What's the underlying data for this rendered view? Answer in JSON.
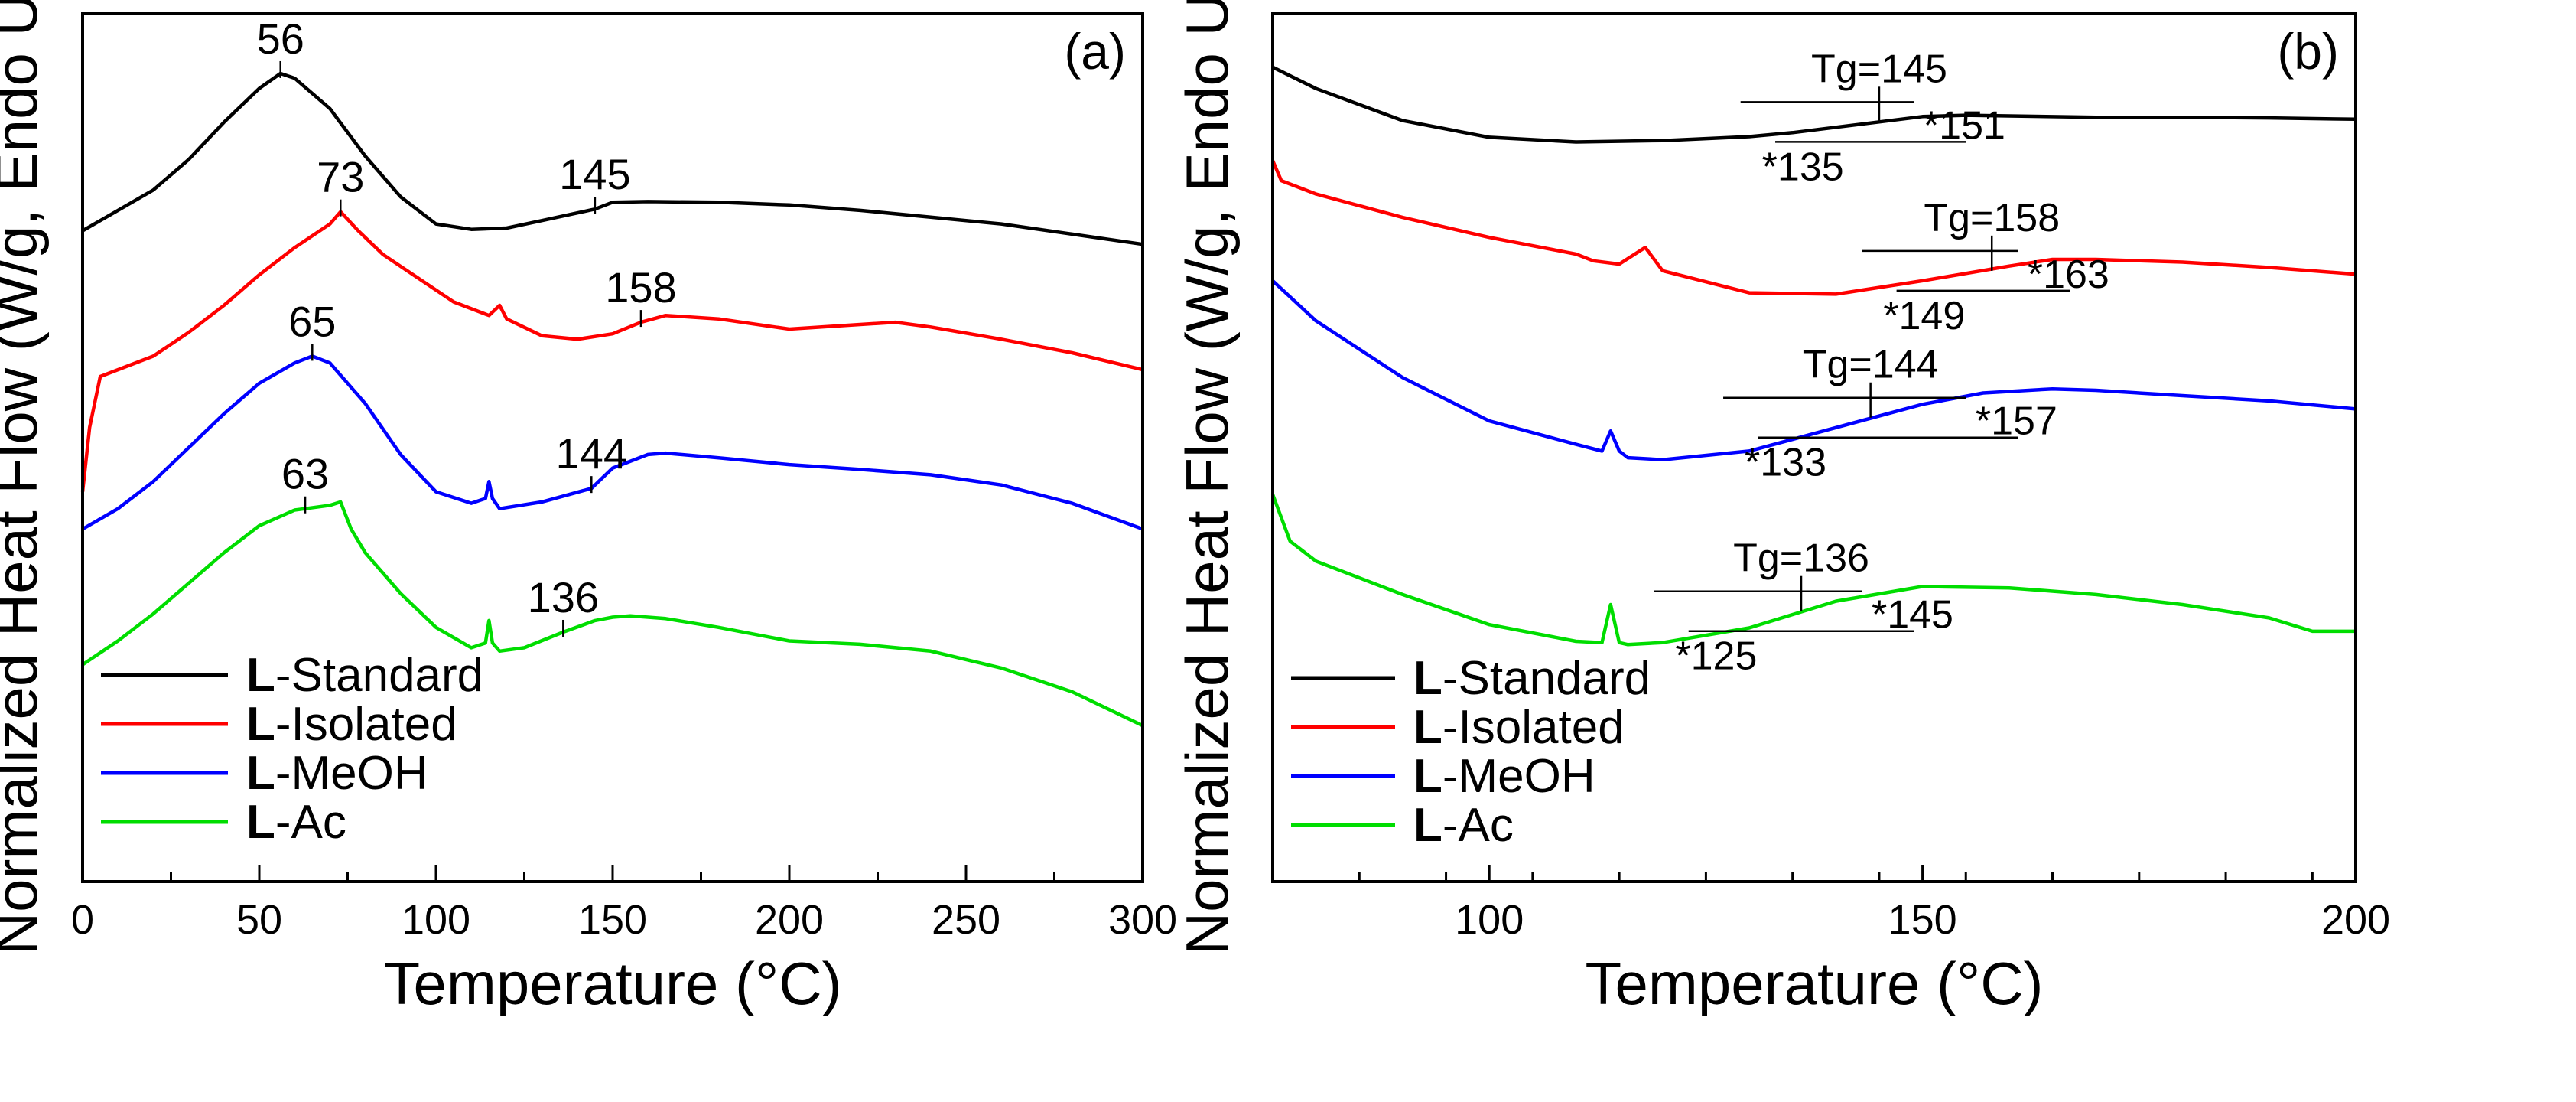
{
  "chart_data": [
    {
      "type": "line",
      "panel_label": "(a)",
      "xlabel": "Temperature (°C)",
      "ylabel": "Normalized Heat Flow (W/g, Endo Up)",
      "xlim": [
        0,
        300
      ],
      "xticks": [
        0,
        50,
        100,
        150,
        200,
        250,
        300
      ],
      "yticks_shown": false,
      "legend_position": "bottom-left",
      "series": [
        {
          "name": "Standard",
          "prefix": "L",
          "color": "#000000",
          "x": [
            0,
            10,
            20,
            30,
            40,
            50,
            56,
            60,
            70,
            80,
            90,
            100,
            110,
            120,
            130,
            145,
            150,
            160,
            180,
            200,
            220,
            240,
            260,
            280,
            300
          ],
          "y": [
            6.4,
            6.7,
            7.0,
            7.45,
            8.0,
            8.5,
            8.72,
            8.65,
            8.2,
            7.5,
            6.9,
            6.5,
            6.42,
            6.44,
            6.55,
            6.72,
            6.82,
            6.83,
            6.82,
            6.78,
            6.7,
            6.6,
            6.5,
            6.35,
            6.2
          ]
        },
        {
          "name": "Isolated",
          "prefix": "L",
          "color": "#ff0000",
          "x": [
            0,
            2,
            5,
            10,
            20,
            30,
            40,
            50,
            60,
            70,
            73,
            78,
            85,
            95,
            105,
            115,
            118,
            120,
            130,
            140,
            150,
            158,
            165,
            180,
            200,
            215,
            230,
            240,
            260,
            280,
            300
          ],
          "y": [
            2.55,
            3.5,
            4.25,
            4.35,
            4.55,
            4.9,
            5.3,
            5.75,
            6.15,
            6.5,
            6.68,
            6.4,
            6.05,
            5.7,
            5.35,
            5.15,
            5.3,
            5.1,
            4.85,
            4.8,
            4.88,
            5.05,
            5.15,
            5.1,
            4.95,
            5.0,
            5.05,
            4.98,
            4.8,
            4.6,
            4.35
          ]
        },
        {
          "name": "MeOH",
          "prefix": "L",
          "color": "#0000ff",
          "x": [
            0,
            10,
            20,
            30,
            40,
            50,
            60,
            65,
            70,
            80,
            90,
            100,
            110,
            114,
            115,
            116,
            118,
            130,
            144,
            150,
            160,
            165,
            180,
            200,
            220,
            240,
            260,
            280,
            300
          ],
          "y": [
            2.0,
            2.3,
            2.7,
            3.2,
            3.7,
            4.15,
            4.45,
            4.55,
            4.45,
            3.85,
            3.1,
            2.55,
            2.38,
            2.45,
            2.7,
            2.45,
            2.3,
            2.4,
            2.6,
            2.9,
            3.1,
            3.12,
            3.05,
            2.95,
            2.88,
            2.8,
            2.65,
            2.38,
            2.0
          ]
        },
        {
          "name": "Ac",
          "prefix": "L",
          "color": "#00dd00",
          "x": [
            0,
            10,
            20,
            30,
            40,
            50,
            60,
            63,
            70,
            73,
            76,
            80,
            90,
            100,
            110,
            114,
            115,
            116,
            118,
            125,
            136,
            145,
            150,
            155,
            165,
            180,
            200,
            220,
            240,
            260,
            280,
            300
          ],
          "y": [
            0.0,
            0.35,
            0.75,
            1.2,
            1.65,
            2.05,
            2.28,
            2.3,
            2.35,
            2.4,
            2.0,
            1.65,
            1.05,
            0.55,
            0.25,
            0.32,
            0.65,
            0.32,
            0.2,
            0.25,
            0.48,
            0.65,
            0.7,
            0.72,
            0.68,
            0.55,
            0.35,
            0.3,
            0.2,
            -0.05,
            -0.4,
            -0.9
          ]
        }
      ],
      "annotations": [
        "56",
        "145",
        "73",
        "158",
        "65",
        "144",
        "63",
        "136"
      ]
    },
    {
      "type": "line",
      "panel_label": "(b)",
      "xlabel": "Temperature (°C)",
      "ylabel": "Normalized Heat Flow (W/g, Endo Up)",
      "xlim": [
        75,
        200
      ],
      "xticks": [
        100,
        150,
        200
      ],
      "yticks_shown": false,
      "legend_position": "bottom-left",
      "series": [
        {
          "name": "Standard",
          "prefix": "L",
          "color": "#000000",
          "x": [
            75,
            80,
            90,
            100,
            110,
            120,
            130,
            135,
            140,
            145,
            150,
            155,
            160,
            170,
            180,
            190,
            200
          ],
          "y": [
            7.6,
            7.28,
            6.8,
            6.55,
            6.48,
            6.5,
            6.56,
            6.62,
            6.7,
            6.78,
            6.86,
            6.88,
            6.87,
            6.85,
            6.85,
            6.84,
            6.82
          ]
        },
        {
          "name": "Isolated",
          "prefix": "L",
          "color": "#ff0000",
          "x": [
            75,
            76,
            80,
            90,
            100,
            110,
            112,
            115,
            118,
            120,
            130,
            140,
            150,
            160,
            165,
            170,
            180,
            190,
            200
          ],
          "y": [
            6.2,
            5.9,
            5.7,
            5.35,
            5.05,
            4.8,
            4.7,
            4.65,
            4.9,
            4.55,
            4.22,
            4.2,
            4.4,
            4.62,
            4.72,
            4.72,
            4.68,
            4.6,
            4.5
          ]
        },
        {
          "name": "MeOH",
          "prefix": "L",
          "color": "#0000ff",
          "x": [
            75,
            80,
            90,
            100,
            110,
            113,
            114,
            115,
            116,
            120,
            130,
            140,
            150,
            157,
            165,
            170,
            180,
            190,
            200
          ],
          "y": [
            4.4,
            3.8,
            2.95,
            2.3,
            1.95,
            1.85,
            2.15,
            1.85,
            1.75,
            1.72,
            1.85,
            2.2,
            2.55,
            2.72,
            2.78,
            2.76,
            2.68,
            2.6,
            2.48
          ]
        },
        {
          "name": "Ac",
          "prefix": "L",
          "color": "#00dd00",
          "x": [
            75,
            77,
            80,
            90,
            100,
            110,
            113,
            114,
            115,
            116,
            120,
            130,
            140,
            150,
            160,
            170,
            180,
            190,
            195,
            200
          ],
          "y": [
            1.2,
            0.5,
            0.2,
            -0.3,
            -0.75,
            -1.0,
            -1.02,
            -0.45,
            -1.02,
            -1.05,
            -1.02,
            -0.8,
            -0.4,
            -0.18,
            -0.2,
            -0.3,
            -0.45,
            -0.65,
            -0.85,
            -0.85
          ]
        }
      ],
      "annotations": [
        "Tg=145",
        "*135",
        "*151",
        "Tg=158",
        "*149",
        "*163",
        "Tg=144",
        "*133",
        "*157",
        "Tg=136",
        "*125",
        "*145"
      ]
    }
  ]
}
